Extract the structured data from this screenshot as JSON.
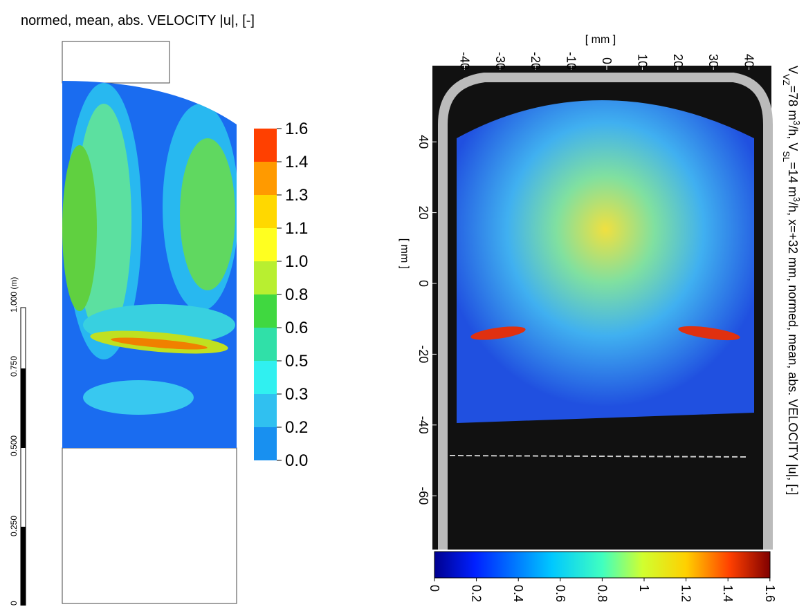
{
  "left_panel": {
    "title": "normed, mean, abs. VELOCITY |u|, [-]",
    "colorbar_labels": [
      "1.6",
      "1.4",
      "1.3",
      "1.1",
      "1.0",
      "0.8",
      "0.6",
      "0.5",
      "0.3",
      "0.2",
      "0.0"
    ],
    "scale_labels": [
      "1.000 (m)",
      "0.750",
      "0.500",
      "0.250",
      "0"
    ]
  },
  "right_panel": {
    "top_axis_label": "[ mm ]",
    "top_ticks": [
      -40,
      -30,
      -20,
      -10,
      0,
      10,
      20,
      30,
      40
    ],
    "left_axis_label": "[ mm ]",
    "left_ticks": [
      40,
      20,
      0,
      -20,
      -40,
      -60
    ],
    "colorbar_ticks": [
      0,
      0.2,
      0.4,
      0.6,
      0.8,
      1,
      1.2,
      1.4,
      1.6
    ],
    "side_label": [
      {
        "text": "V",
        "style": "normal"
      },
      {
        "text": "VZ",
        "style": "sub"
      },
      {
        "text": "=78 m",
        "style": "normal"
      },
      {
        "text": "3",
        "style": "sup"
      },
      {
        "text": "/h, V",
        "style": "normal"
      },
      {
        "text": "SL",
        "style": "sub"
      },
      {
        "text": "=14 m",
        "style": "normal"
      },
      {
        "text": "3",
        "style": "sup"
      },
      {
        "text": "/h, x=+32 mm, normed, mean, abs. VELOCITY |u|, [-]",
        "style": "normal"
      }
    ]
  }
}
